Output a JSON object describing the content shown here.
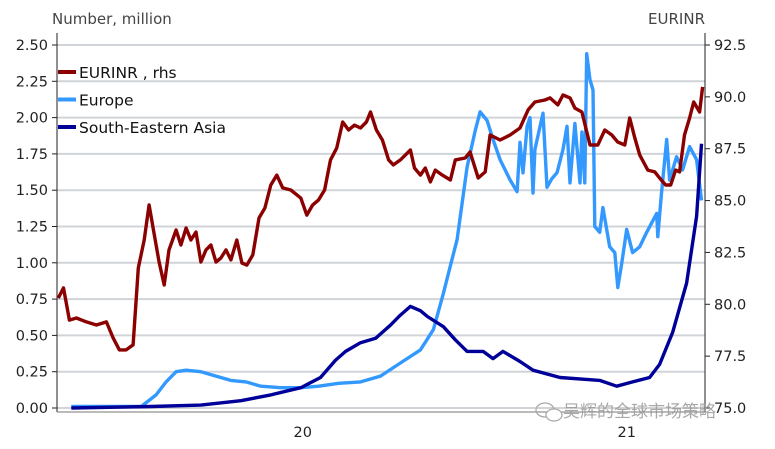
{
  "chart_data": {
    "type": "line",
    "left_axis_title": "Number, million",
    "right_axis_title": "EURINR",
    "xlabel": "",
    "x_units": "months since Jan 2020",
    "xlim": [
      -9.1,
      14.9
    ],
    "x_ticks": [
      {
        "x": 0,
        "label": "20"
      },
      {
        "x": 12,
        "label": "21"
      }
    ],
    "ylim_left": [
      0,
      2.5
    ],
    "ylim_right": [
      75,
      92.5
    ],
    "left_ticks": [
      "0.00",
      "0.25",
      "0.50",
      "0.75",
      "1.00",
      "1.25",
      "1.50",
      "1.75",
      "2.00",
      "2.25",
      "2.50"
    ],
    "right_ticks": [
      "75.0",
      "77.5",
      "80.0",
      "82.5",
      "85.0",
      "87.5",
      "90.0",
      "92.5"
    ],
    "grid": true,
    "legend_position": "top-left",
    "series": [
      {
        "name": "EURINR , rhs",
        "axis": "right",
        "color": "#8B0000",
        "x": [
          -9.05,
          -8.86,
          -8.64,
          -8.38,
          -8.01,
          -7.64,
          -7.27,
          -7.02,
          -6.79,
          -6.54,
          -6.28,
          -6.09,
          -5.87,
          -5.69,
          -5.54,
          -5.32,
          -5.13,
          -4.95,
          -4.69,
          -4.51,
          -4.32,
          -4.14,
          -3.95,
          -3.77,
          -3.58,
          -3.4,
          -3.21,
          -3.03,
          -2.84,
          -2.66,
          -2.44,
          -2.25,
          -2.07,
          -1.85,
          -1.62,
          -1.4,
          -1.18,
          -0.96,
          -0.74,
          -0.44,
          -0.07,
          0.15,
          0.37,
          0.59,
          0.81,
          1.03,
          1.26,
          1.48,
          1.7,
          1.92,
          2.14,
          2.36,
          2.51,
          2.73,
          2.95,
          3.18,
          3.36,
          3.62,
          3.99,
          4.14,
          4.36,
          4.54,
          4.73,
          4.91,
          5.17,
          5.47,
          5.65,
          6.02,
          6.2,
          6.5,
          6.76,
          6.94,
          7.31,
          7.68,
          8.05,
          8.35,
          8.6,
          8.97,
          9.16,
          9.45,
          9.64,
          9.9,
          10.08,
          10.34,
          10.64,
          10.93,
          11.19,
          11.45,
          11.67,
          11.93,
          12.11,
          12.3,
          12.48,
          12.78,
          13.04,
          13.22,
          13.44,
          13.63,
          13.81,
          13.96,
          14.14,
          14.33,
          14.48,
          14.7,
          14.81
        ],
        "values": [
          80.3,
          80.79,
          79.24,
          79.34,
          79.15,
          79.0,
          79.15,
          78.37,
          77.8,
          77.8,
          78.04,
          81.75,
          83.1,
          84.79,
          83.68,
          82.04,
          80.93,
          82.62,
          83.58,
          82.86,
          83.68,
          83.1,
          83.48,
          82.04,
          82.62,
          82.86,
          82.04,
          82.23,
          82.62,
          82.14,
          83.1,
          81.99,
          81.89,
          82.38,
          84.16,
          84.64,
          85.75,
          86.23,
          85.61,
          85.51,
          85.12,
          84.3,
          84.79,
          85.03,
          85.51,
          86.96,
          87.53,
          88.79,
          88.4,
          88.64,
          88.5,
          88.79,
          89.27,
          88.4,
          87.92,
          86.96,
          86.72,
          86.96,
          87.44,
          86.57,
          86.23,
          86.57,
          85.9,
          86.47,
          86.23,
          85.99,
          86.96,
          87.05,
          87.34,
          86.09,
          86.38,
          88.16,
          87.92,
          88.16,
          88.5,
          89.37,
          89.75,
          89.85,
          89.95,
          89.61,
          90.09,
          89.95,
          89.46,
          89.27,
          87.68,
          87.68,
          88.4,
          88.16,
          87.82,
          87.68,
          88.98,
          88.02,
          87.2,
          86.47,
          86.38,
          86.09,
          85.75,
          85.75,
          86.47,
          86.38,
          88.16,
          88.98,
          89.75,
          89.27,
          90.48
        ]
      },
      {
        "name": "Europe",
        "axis": "left",
        "color": "#3399FF",
        "x": [
          -8.57,
          -5.98,
          -5.43,
          -5.06,
          -4.69,
          -4.32,
          -3.77,
          -3.21,
          -2.66,
          -2.1,
          -1.55,
          -0.81,
          -0.07,
          0.59,
          1.33,
          2.14,
          2.88,
          3.62,
          4.36,
          4.84,
          5.21,
          5.47,
          5.72,
          6.09,
          6.39,
          6.57,
          6.83,
          7.05,
          7.31,
          7.68,
          7.94,
          8.05,
          8.16,
          8.31,
          8.42,
          8.53,
          8.6,
          8.9,
          9.05,
          9.23,
          9.42,
          9.64,
          9.79,
          9.9,
          10.08,
          10.27,
          10.34,
          10.45,
          10.52,
          10.64,
          10.75,
          10.82,
          11.0,
          11.12,
          11.37,
          11.56,
          11.67,
          11.82,
          12.0,
          12.22,
          12.48,
          12.74,
          13.11,
          13.15,
          13.29,
          13.48,
          13.59,
          13.85,
          14.07,
          14.33,
          14.59,
          14.77
        ],
        "values": [
          0.01,
          0.01,
          0.09,
          0.18,
          0.25,
          0.26,
          0.25,
          0.22,
          0.19,
          0.18,
          0.15,
          0.14,
          0.14,
          0.15,
          0.17,
          0.18,
          0.22,
          0.31,
          0.4,
          0.54,
          0.79,
          0.98,
          1.16,
          1.66,
          1.91,
          2.04,
          1.98,
          1.85,
          1.71,
          1.57,
          1.49,
          1.83,
          1.62,
          1.94,
          2.0,
          1.48,
          1.78,
          2.03,
          1.52,
          1.58,
          1.62,
          1.78,
          1.94,
          1.55,
          1.96,
          1.55,
          1.9,
          1.55,
          2.44,
          2.26,
          2.19,
          1.25,
          1.21,
          1.38,
          1.11,
          1.07,
          0.83,
          1.0,
          1.23,
          1.07,
          1.11,
          1.21,
          1.34,
          1.18,
          1.48,
          1.85,
          1.57,
          1.73,
          1.64,
          1.8,
          1.71,
          1.43
        ]
      },
      {
        "name": "South-Eastern Asia",
        "axis": "left",
        "color": "#000099",
        "x": [
          -8.57,
          -5.61,
          -3.77,
          -2.29,
          -1.18,
          -0.07,
          0.66,
          1.22,
          1.59,
          2.14,
          2.7,
          3.25,
          3.62,
          3.99,
          4.36,
          4.62,
          5.21,
          5.65,
          6.09,
          6.68,
          7.05,
          7.42,
          8.05,
          8.53,
          9.53,
          11.0,
          11.63,
          12.22,
          12.85,
          13.22,
          13.7,
          14.22,
          14.59,
          14.77
        ],
        "values": [
          0.0,
          0.01,
          0.02,
          0.05,
          0.09,
          0.14,
          0.21,
          0.33,
          0.39,
          0.45,
          0.48,
          0.57,
          0.64,
          0.7,
          0.67,
          0.63,
          0.56,
          0.47,
          0.39,
          0.39,
          0.34,
          0.39,
          0.32,
          0.26,
          0.21,
          0.19,
          0.15,
          0.18,
          0.21,
          0.3,
          0.52,
          0.86,
          1.32,
          1.82
        ]
      }
    ]
  },
  "watermark": {
    "text": "吴辉的全球市场策略",
    "icon": "wechat-icon"
  }
}
